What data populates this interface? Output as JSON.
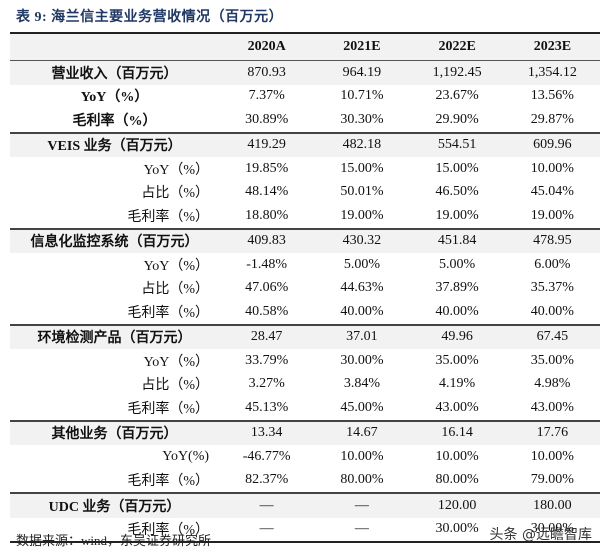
{
  "title": "表 9:  海兰信主要业务营收情况（百万元）",
  "columns": [
    "",
    "2020A",
    "2021E",
    "2022E",
    "2023E"
  ],
  "rows": [
    {
      "label": "营业收入（百万元）",
      "values": [
        "870.93",
        "964.19",
        "1,192.45",
        "1,354.12"
      ]
    },
    {
      "label": "YoY（%）",
      "values": [
        "7.37%",
        "10.71%",
        "23.67%",
        "13.56%"
      ]
    },
    {
      "label": "毛利率（%）",
      "values": [
        "30.89%",
        "30.30%",
        "29.90%",
        "29.87%"
      ]
    },
    {
      "label": "VEIS 业务（百万元）",
      "values": [
        "419.29",
        "482.18",
        "554.51",
        "609.96"
      ]
    },
    {
      "label": "YoY（%）",
      "values": [
        "19.85%",
        "15.00%",
        "15.00%",
        "10.00%"
      ]
    },
    {
      "label": "占比（%）",
      "values": [
        "48.14%",
        "50.01%",
        "46.50%",
        "45.04%"
      ]
    },
    {
      "label": "毛利率（%）",
      "values": [
        "18.80%",
        "19.00%",
        "19.00%",
        "19.00%"
      ]
    },
    {
      "label": "信息化监控系统（百万元）",
      "values": [
        "409.83",
        "430.32",
        "451.84",
        "478.95"
      ]
    },
    {
      "label": "YoY（%）",
      "values": [
        "-1.48%",
        "5.00%",
        "5.00%",
        "6.00%"
      ]
    },
    {
      "label": "占比（%）",
      "values": [
        "47.06%",
        "44.63%",
        "37.89%",
        "35.37%"
      ]
    },
    {
      "label": "毛利率（%）",
      "values": [
        "40.58%",
        "40.00%",
        "40.00%",
        "40.00%"
      ]
    },
    {
      "label": "环境检测产品（百万元）",
      "values": [
        "28.47",
        "37.01",
        "49.96",
        "67.45"
      ]
    },
    {
      "label": "YoY（%）",
      "values": [
        "33.79%",
        "30.00%",
        "35.00%",
        "35.00%"
      ]
    },
    {
      "label": "占比（%）",
      "values": [
        "3.27%",
        "3.84%",
        "4.19%",
        "4.98%"
      ]
    },
    {
      "label": "毛利率（%）",
      "values": [
        "45.13%",
        "45.00%",
        "43.00%",
        "43.00%"
      ]
    },
    {
      "label": "其他业务（百万元）",
      "values": [
        "13.34",
        "14.67",
        "16.14",
        "17.76"
      ]
    },
    {
      "label": "YoY(%)",
      "values": [
        "-46.77%",
        "10.00%",
        "10.00%",
        "10.00%"
      ]
    },
    {
      "label": "毛利率（%）",
      "values": [
        "82.37%",
        "80.00%",
        "80.00%",
        "79.00%"
      ]
    },
    {
      "label": "UDC 业务（百万元）",
      "values": [
        "—",
        "—",
        "120.00",
        "180.00"
      ]
    },
    {
      "label": "毛利率（%）",
      "values": [
        "—",
        "—",
        "30.00%",
        "30.00%"
      ]
    }
  ],
  "source": "数据来源：wind，东吴证券研究所",
  "watermark": "头条 @远瞻智库"
}
